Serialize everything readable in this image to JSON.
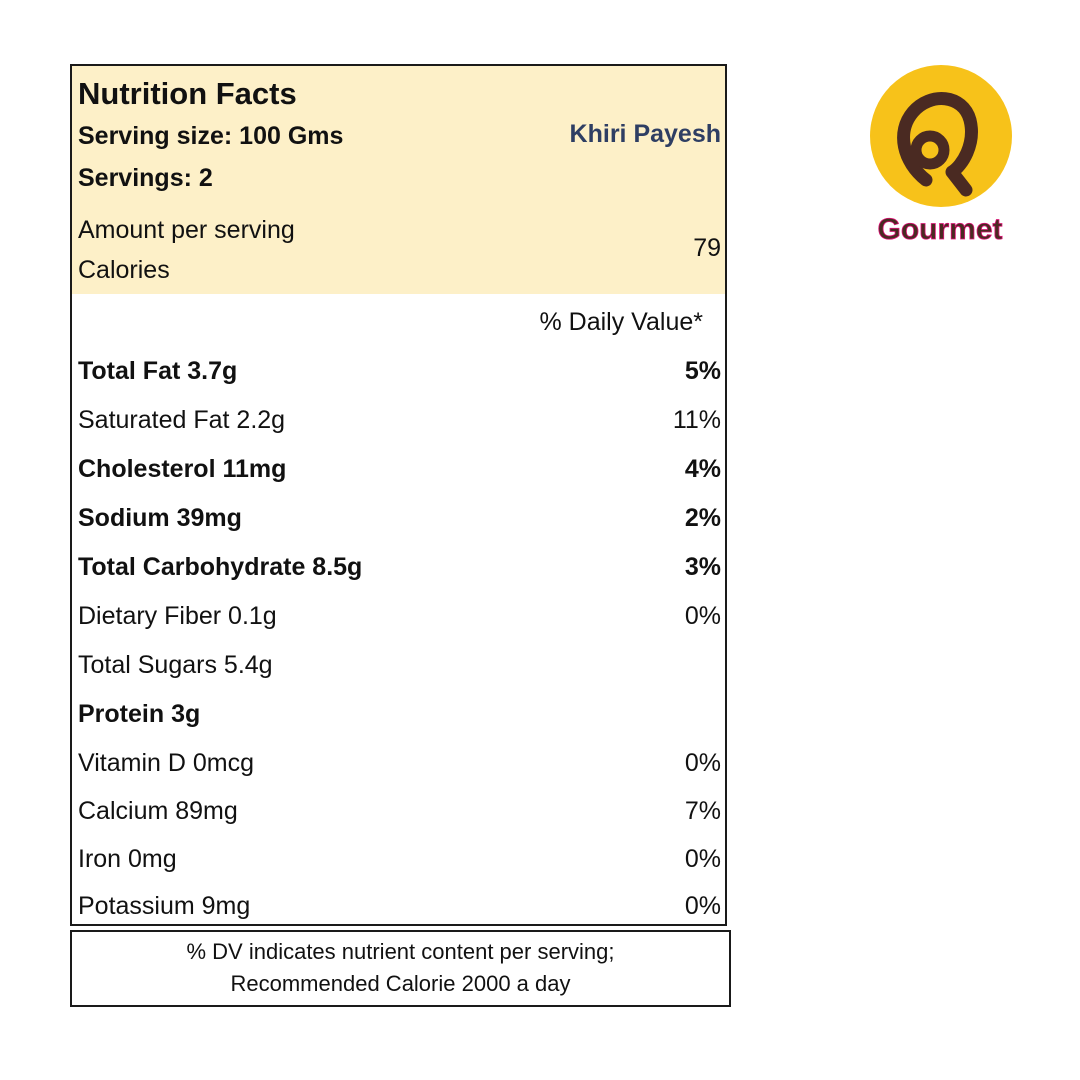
{
  "label": {
    "title": "Nutrition Facts",
    "serving_size": "Serving size: 100 Gms",
    "product_name": "Khiri Payesh",
    "servings": "Servings: 2",
    "amount_per_serving": "Amount per serving",
    "calories_label": "Calories",
    "calories_value": "79",
    "daily_value_header": "% Daily Value*",
    "nutrients": [
      {
        "name": "Total Fat 3.7g",
        "dv": "5%",
        "bold": true
      },
      {
        "name": "Saturated Fat 2.2g",
        "dv": "11%",
        "bold": false
      },
      {
        "name": "Cholesterol 11mg",
        "dv": "4%",
        "bold": true
      },
      {
        "name": "Sodium 39mg",
        "dv": "2%",
        "bold": true
      },
      {
        "name": "Total Carbohydrate 8.5g",
        "dv": "3%",
        "bold": true
      },
      {
        "name": "Dietary Fiber 0.1g",
        "dv": "0%",
        "bold": false
      },
      {
        "name": "Total Sugars 5.4g",
        "dv": "",
        "bold": false
      },
      {
        "name": "Protein 3g",
        "dv": "",
        "bold": true
      },
      {
        "name": "Vitamin D 0mcg",
        "dv": "0%",
        "bold": false
      },
      {
        "name": "Calcium 89mg",
        "dv": "7%",
        "bold": false
      },
      {
        "name": "Iron 0mg",
        "dv": "0%",
        "bold": false
      },
      {
        "name": "Potassium 9mg",
        "dv": "0%",
        "bold": false
      }
    ]
  },
  "footnote": {
    "line1": "% DV indicates nutrient content per serving;",
    "line2": "Recommended Calorie 2000 a day"
  },
  "logo": {
    "icon": "gourmet-logo-icon",
    "text": "Gourmet",
    "colors": {
      "circle": "#f7c21a",
      "mark": "#4a2a22",
      "text_primary": "#4a2a22",
      "text_accent": "#e0147a"
    }
  }
}
